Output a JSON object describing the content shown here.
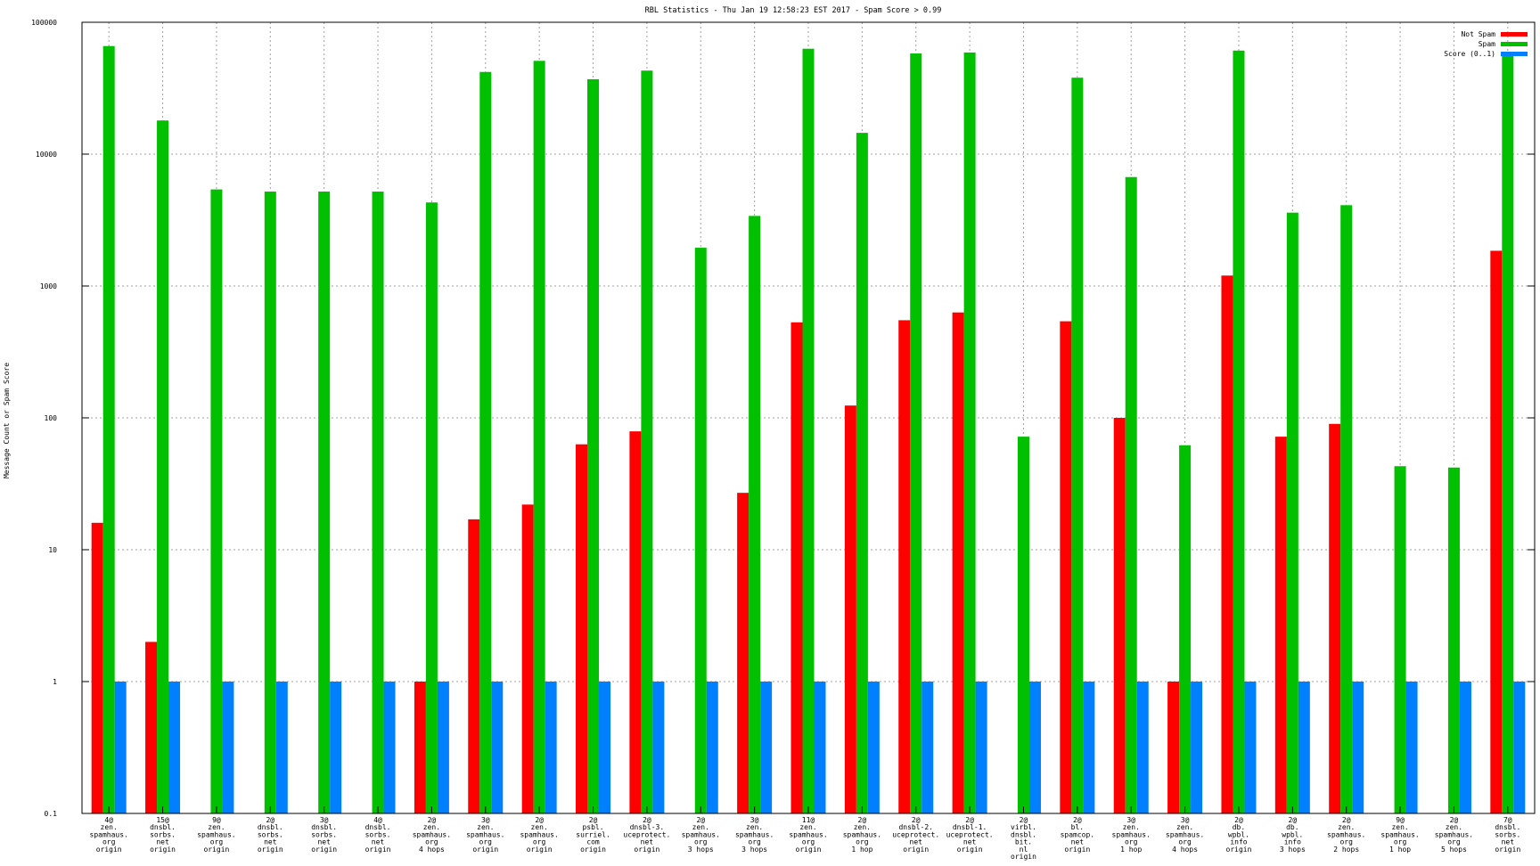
{
  "chart_data": {
    "type": "bar",
    "title": "RBL Statistics - Thu Jan 19 12:58:23 EST 2017 - Spam Score > 0.99",
    "ylabel": "Message Count or Spam Score",
    "xlabel": "",
    "yscale": "log",
    "ylim": [
      0.1,
      100000
    ],
    "yticks": [
      "0.1",
      "1",
      "10",
      "100",
      "1000",
      "10000",
      "100000"
    ],
    "grid": true,
    "legend_position": "top-right",
    "categories": [
      [
        "4@",
        "zen.",
        "spamhaus.",
        "org",
        "origin"
      ],
      [
        "15@",
        "dnsbl.",
        "sorbs.",
        "net",
        "origin"
      ],
      [
        "9@",
        "zen.",
        "spamhaus.",
        "org",
        "origin"
      ],
      [
        "2@",
        "dnsbl.",
        "sorbs.",
        "net",
        "origin"
      ],
      [
        "3@",
        "dnsbl.",
        "sorbs.",
        "net",
        "origin"
      ],
      [
        "4@",
        "dnsbl.",
        "sorbs.",
        "net",
        "origin"
      ],
      [
        "2@",
        "zen.",
        "spamhaus.",
        "org",
        "4 hops"
      ],
      [
        "3@",
        "zen.",
        "spamhaus.",
        "org",
        "origin"
      ],
      [
        "2@",
        "zen.",
        "spamhaus.",
        "org",
        "origin"
      ],
      [
        "2@",
        "psbl.",
        "surriel.",
        "com",
        "origin"
      ],
      [
        "2@",
        "dnsbl-3.",
        "uceprotect.",
        "net",
        "origin"
      ],
      [
        "2@",
        "zen.",
        "spamhaus.",
        "org",
        "3 hops"
      ],
      [
        "3@",
        "zen.",
        "spamhaus.",
        "org",
        "3 hops"
      ],
      [
        "11@",
        "zen.",
        "spamhaus.",
        "org",
        "origin"
      ],
      [
        "2@",
        "zen.",
        "spamhaus.",
        "org",
        "1 hop"
      ],
      [
        "2@",
        "dnsbl-2.",
        "uceprotect.",
        "net",
        "origin"
      ],
      [
        "2@",
        "dnsbl-1.",
        "uceprotect.",
        "net",
        "origin"
      ],
      [
        "2@",
        "virbl.",
        "dnsbl.",
        "bit.",
        "nl",
        "origin"
      ],
      [
        "2@",
        "bl.",
        "spamcop.",
        "net",
        "origin"
      ],
      [
        "3@",
        "zen.",
        "spamhaus.",
        "org",
        "1 hop"
      ],
      [
        "3@",
        "zen.",
        "spamhaus.",
        "org",
        "4 hops"
      ],
      [
        "2@",
        "db.",
        "wpbl.",
        "info",
        "origin"
      ],
      [
        "2@",
        "db.",
        "wpbl.",
        "info",
        "3 hops"
      ],
      [
        "2@",
        "zen.",
        "spamhaus.",
        "org",
        "2 hops"
      ],
      [
        "9@",
        "zen.",
        "spamhaus.",
        "org",
        "1 hop"
      ],
      [
        "2@",
        "zen.",
        "spamhaus.",
        "org",
        "5 hops"
      ],
      [
        "7@",
        "dnsbl.",
        "sorbs.",
        "net",
        "origin"
      ]
    ],
    "series": [
      {
        "name": "Not Spam",
        "color": "#ff0000",
        "values": [
          16,
          2,
          null,
          null,
          null,
          null,
          1,
          17,
          22,
          63,
          79,
          null,
          27,
          530,
          124,
          550,
          630,
          null,
          540,
          100,
          1,
          1200,
          72,
          90,
          null,
          null,
          1850
        ]
      },
      {
        "name": "Spam",
        "color": "#00c000",
        "values": [
          66000,
          18000,
          5400,
          5200,
          5200,
          5200,
          4300,
          42000,
          51000,
          37000,
          43000,
          1950,
          3400,
          63000,
          14500,
          58000,
          59000,
          72,
          38000,
          6700,
          62,
          61000,
          3600,
          4100,
          43,
          42,
          57000
        ]
      },
      {
        "name": "Score (0..1)",
        "color": "#0080ff",
        "values": [
          1,
          1,
          1,
          1,
          1,
          1,
          1,
          1,
          1,
          1,
          1,
          1,
          1,
          1,
          1,
          1,
          1,
          1,
          1,
          1,
          1,
          1,
          1,
          1,
          1,
          1,
          1
        ]
      }
    ]
  }
}
